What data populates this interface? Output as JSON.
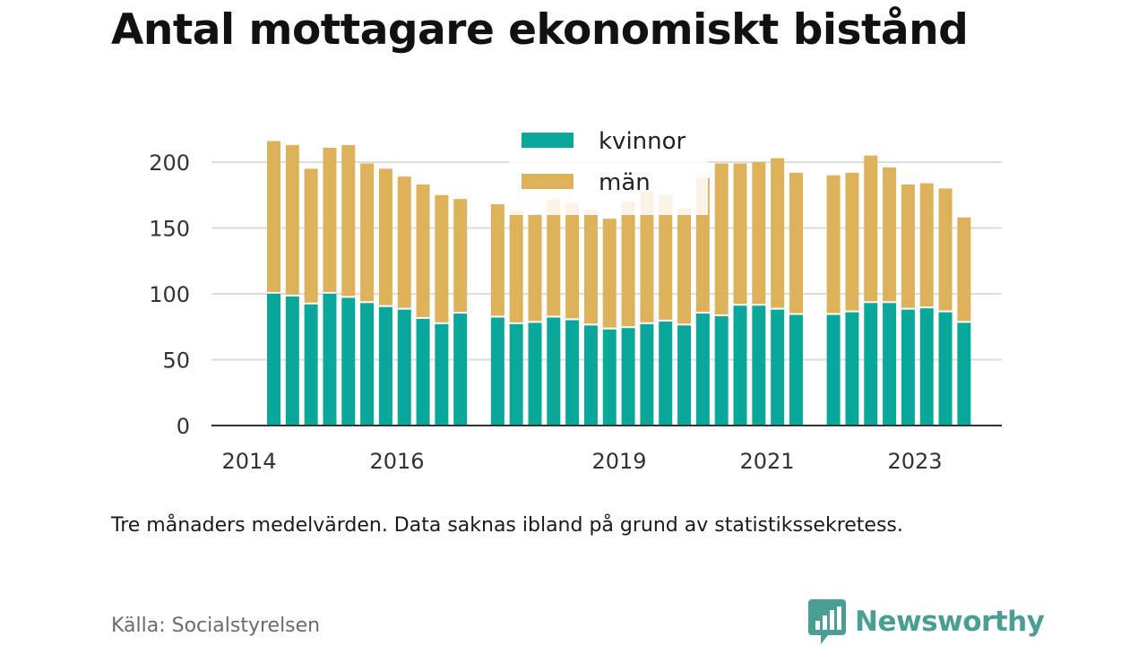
{
  "title": "Antal mottagare ekonomiskt bistånd",
  "note": "Tre månaders medelvärden. Data saknas ibland på grund av statistikssekretess.",
  "source": "Källa: Socialstyrelsen",
  "brand": {
    "name": "Newsworthy",
    "icon": "newsworthy-logo-icon"
  },
  "colors": {
    "kvinnor": "#0aa89b",
    "man": "#deb15b",
    "grid": "#dddddd",
    "axis": "#333333",
    "brand": "#4a9f94"
  },
  "chart_data": {
    "type": "bar",
    "stacked": true,
    "x_ticks": [
      "2014",
      "2016",
      "2019",
      "2021",
      "2023"
    ],
    "y_ticks": [
      0,
      50,
      100,
      150,
      200
    ],
    "ylim": [
      0,
      225
    ],
    "grid": true,
    "legend_position": "top-center",
    "legend": [
      "kvinnor",
      "män"
    ],
    "series": [
      {
        "name": "kvinnor",
        "color": "#0aa89b",
        "values": [
          100,
          98,
          92,
          100,
          97,
          93,
          90,
          88,
          81,
          77,
          85,
          null,
          82,
          77,
          78,
          82,
          80,
          76,
          73,
          74,
          77,
          79,
          76,
          85,
          83,
          91,
          91,
          88,
          84,
          null,
          84,
          86,
          93,
          93,
          88,
          89,
          86,
          78
        ]
      },
      {
        "name": "män",
        "color": "#deb15b",
        "values": [
          116,
          115,
          103,
          111,
          116,
          106,
          105,
          101,
          102,
          98,
          87,
          null,
          86,
          86,
          83,
          90,
          89,
          88,
          84,
          96,
          101,
          96,
          89,
          103,
          116,
          108,
          109,
          115,
          108,
          null,
          106,
          106,
          112,
          103,
          95,
          95,
          94,
          80
        ]
      }
    ]
  }
}
